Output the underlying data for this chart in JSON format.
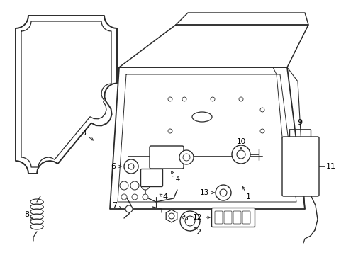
{
  "bg_color": "#ffffff",
  "line_color": "#2a2a2a",
  "text_color": "#000000",
  "figsize": [
    4.89,
    3.6
  ],
  "dpi": 100
}
